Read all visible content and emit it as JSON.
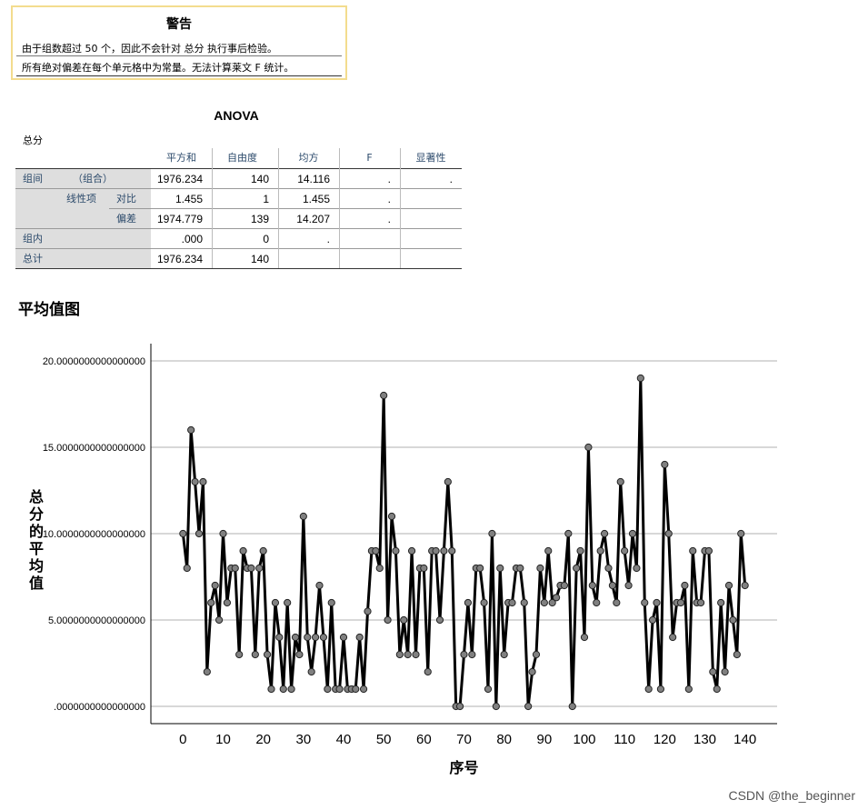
{
  "warning": {
    "title": "警告",
    "line1": "由于组数超过 50 个，因此不会针对 总分 执行事后检验。",
    "line2": "所有绝对偏差在每个单元格中为常量。无法计算莱文 F 统计。"
  },
  "anova": {
    "title": "ANOVA",
    "variable": "总分",
    "headers": [
      "平方和",
      "自由度",
      "均方",
      "F",
      "显著性"
    ],
    "rows": [
      {
        "c1": "组间",
        "c2": "（组合）",
        "c3": "",
        "ss": "1976.234",
        "df": "140",
        "ms": "14.116",
        "f": ".",
        "sig": "."
      },
      {
        "c1": "",
        "c2": "线性项",
        "c3": "对比",
        "ss": "1.455",
        "df": "1",
        "ms": "1.455",
        "f": ".",
        "sig": ""
      },
      {
        "c1": "",
        "c2": "",
        "c3": "偏差",
        "ss": "1974.779",
        "df": "139",
        "ms": "14.207",
        "f": ".",
        "sig": ""
      },
      {
        "c1": "组内",
        "c2": "",
        "c3": "",
        "ss": ".000",
        "df": "0",
        "ms": ".",
        "f": "",
        "sig": ""
      },
      {
        "c1": "总计",
        "c2": "",
        "c3": "",
        "ss": "1976.234",
        "df": "140",
        "ms": "",
        "f": "",
        "sig": ""
      }
    ]
  },
  "section_title": "平均值图",
  "watermark": "CSDN @the_beginner",
  "chart_data": {
    "type": "line",
    "xlabel": "序号",
    "ylabel": "总分的平均值",
    "xlim": [
      -8,
      148
    ],
    "ylim": [
      -1,
      21
    ],
    "x_ticks": [
      0,
      10,
      20,
      30,
      40,
      50,
      60,
      70,
      80,
      90,
      100,
      110,
      120,
      130,
      140
    ],
    "y_ticks": [
      0,
      5,
      10,
      15,
      20
    ],
    "y_tick_labels": [
      ".0000000000000000",
      "5.0000000000000000",
      "10.0000000000000000",
      "15.0000000000000000",
      "20.0000000000000000"
    ],
    "grid": "horizontal",
    "line_color": "#000000",
    "marker_color": "#808080",
    "series": [
      {
        "x_start": 0,
        "values": [
          10,
          8,
          16,
          13,
          10,
          13,
          2,
          6,
          7,
          5,
          10,
          6,
          8,
          8,
          3,
          9,
          8,
          8,
          3,
          8,
          9,
          3,
          1,
          6,
          4,
          1,
          6,
          1,
          4,
          3,
          11,
          4,
          2,
          4,
          7,
          4,
          1,
          6,
          1,
          1,
          4,
          1,
          1,
          1,
          4,
          1,
          5.5,
          9,
          9,
          8,
          18,
          5,
          11,
          9,
          3,
          5,
          3,
          9,
          3,
          8,
          8,
          2,
          9,
          9,
          5,
          9,
          13,
          9,
          0,
          0,
          3,
          6,
          3,
          8,
          8,
          6,
          1,
          10,
          0,
          8,
          3,
          6,
          6,
          8,
          8,
          6,
          0,
          2,
          3,
          8,
          6,
          9,
          6,
          6.3,
          7,
          7,
          10,
          0,
          8,
          9,
          4,
          15,
          7,
          6,
          9,
          10,
          8,
          7,
          6,
          13,
          9,
          7,
          10,
          8,
          19,
          6,
          1,
          5,
          6,
          1,
          14,
          10,
          4,
          6,
          6,
          7,
          1,
          9,
          6,
          6,
          9,
          9,
          2,
          1,
          6,
          2,
          7,
          5,
          3,
          10,
          7
        ]
      }
    ]
  }
}
